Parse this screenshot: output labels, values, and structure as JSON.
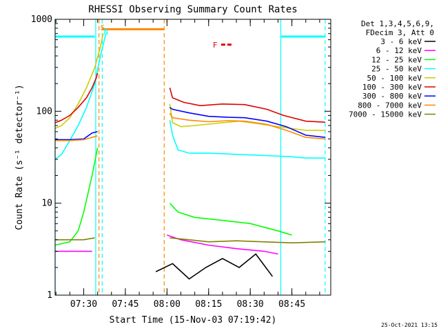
{
  "chart_data": {
    "type": "line",
    "title": "RHESSI Observing Summary Count Rates",
    "xlabel": "Start Time (15-Nov-03 07:19:42)",
    "ylabel": "Count Rate (s⁻¹ detector⁻¹)",
    "yscale": "log",
    "ylim": [
      1,
      1000
    ],
    "y_ticks": [
      1,
      10,
      100,
      1000
    ],
    "y_tick_labels": [
      "1",
      "10",
      "100",
      "1000"
    ],
    "xlim": [
      "07:19:42",
      "08:59:00"
    ],
    "x_ticks": [
      "07:30",
      "07:45",
      "08:00",
      "08:15",
      "08:30",
      "08:45"
    ],
    "grid": false,
    "legend_position": "right",
    "legend_header": [
      "Det 1,3,4,5,6,9,",
      "FDecim 3, Att 0"
    ],
    "footer_date": "25-Oct-2021 13:15",
    "series": [
      {
        "name": "3 - 6 keV",
        "color": "#000000",
        "segments": [
          {
            "x": [
              "07:56:00",
              "08:02:00",
              "08:08:00",
              "08:14:00",
              "08:20:00",
              "08:26:00",
              "08:32:00",
              "08:38:00"
            ],
            "y": [
              1.8,
              2.2,
              1.5,
              2.0,
              2.5,
              2.0,
              2.8,
              1.6
            ]
          }
        ]
      },
      {
        "name": "6 - 12 keV",
        "color": "#ff00ff",
        "segments": [
          {
            "x": [
              "07:19:42",
              "07:25:00",
              "07:30:00",
              "07:33:00"
            ],
            "y": [
              3.0,
              3.0,
              3.0,
              3.0
            ]
          },
          {
            "x": [
              "08:00:00",
              "08:05:00",
              "08:15:00",
              "08:25:00",
              "08:35:00",
              "08:40:00"
            ],
            "y": [
              4.5,
              4.0,
              3.5,
              3.2,
              3.0,
              2.8
            ]
          }
        ]
      },
      {
        "name": "12 - 25 keV",
        "color": "#00ff00",
        "segments": [
          {
            "x": [
              "07:19:42",
              "07:25:00",
              "07:28:00",
              "07:30:00",
              "07:33:00",
              "07:35:00"
            ],
            "y": [
              3.5,
              3.8,
              5.0,
              8.0,
              20,
              40
            ]
          },
          {
            "x": [
              "08:01:00",
              "08:04:00",
              "08:10:00",
              "08:20:00",
              "08:30:00",
              "08:40:00",
              "08:45:00"
            ],
            "y": [
              10,
              8.0,
              7.0,
              6.5,
              6.0,
              5.0,
              4.5
            ]
          }
        ]
      },
      {
        "name": "25 - 50 keV",
        "color": "#00ffff",
        "segments": [
          {
            "x": [
              "07:19:42",
              "07:22:00",
              "07:25:00",
              "07:28:00",
              "07:31:00",
              "07:34:00",
              "07:36:00",
              "07:38:00"
            ],
            "y": [
              30,
              34,
              48,
              70,
              110,
              200,
              400,
              700
            ]
          },
          {
            "x": [
              "08:01:00",
              "08:02:00",
              "08:04:00",
              "08:08:00",
              "08:15:00",
              "08:25:00",
              "08:35:00",
              "08:45:00",
              "08:50:00",
              "08:57:00"
            ],
            "y": [
              80,
              55,
              38,
              35,
              35,
              34,
              33,
              32,
              31,
              31
            ]
          }
        ]
      },
      {
        "name": "50 - 100 keV",
        "color": "#cccc00",
        "segments": [
          {
            "x": [
              "07:19:42",
              "07:22:00",
              "07:25:00",
              "07:28:00",
              "07:31:00",
              "07:34:00",
              "07:36:00",
              "07:37:00"
            ],
            "y": [
              65,
              70,
              85,
              120,
              180,
              300,
              500,
              700
            ]
          },
          {
            "x": [
              "08:01:00",
              "08:02:00",
              "08:05:00",
              "08:10:00",
              "08:20:00",
              "08:26:00",
              "08:32:00",
              "08:40:00",
              "08:50:00",
              "08:57:00"
            ],
            "y": [
              120,
              75,
              68,
              70,
              75,
              78,
              74,
              68,
              62,
              62
            ]
          }
        ]
      },
      {
        "name": "100 - 300 keV",
        "color": "#dd0000",
        "segments": [
          {
            "x": [
              "07:19:42",
              "07:22:00",
              "07:25:00",
              "07:28:00",
              "07:31:00",
              "07:33:00",
              "07:34:30",
              "07:35:00"
            ],
            "y": [
              75,
              80,
              90,
              110,
              140,
              180,
              230,
              260
            ]
          },
          {
            "x": [
              "08:01:00",
              "08:02:00",
              "08:06:00",
              "08:12:00",
              "08:20:00",
              "08:28:00",
              "08:36:00",
              "08:42:00",
              "08:50:00",
              "08:57:00"
            ],
            "y": [
              180,
              140,
              125,
              115,
              120,
              118,
              105,
              90,
              78,
              76
            ]
          }
        ]
      },
      {
        "name": "300 - 800 keV",
        "color": "#0000ff",
        "segments": [
          {
            "x": [
              "07:19:42",
              "07:25:00",
              "07:30:00",
              "07:33:00",
              "07:35:00"
            ],
            "y": [
              49,
              49,
              50,
              58,
              60
            ]
          },
          {
            "x": [
              "08:01:00",
              "08:02:00",
              "08:08:00",
              "08:15:00",
              "08:22:00",
              "08:28:00",
              "08:36:00",
              "08:43:00",
              "08:50:00",
              "08:57:00"
            ],
            "y": [
              110,
              105,
              96,
              88,
              86,
              85,
              78,
              68,
              55,
              52
            ]
          }
        ]
      },
      {
        "name": "800 - 7000 keV",
        "color": "#ff8800",
        "segments": [
          {
            "x": [
              "07:19:42",
              "07:25:00",
              "07:30:00",
              "07:33:00",
              "07:35:00"
            ],
            "y": [
              48,
              48,
              49,
              52,
              54
            ]
          },
          {
            "x": [
              "08:01:00",
              "08:02:00",
              "08:08:00",
              "08:15:00",
              "08:22:00",
              "08:28:00",
              "08:36:00",
              "08:43:00",
              "08:50:00",
              "08:57:00"
            ],
            "y": [
              95,
              85,
              80,
              77,
              79,
              78,
              72,
              62,
              52,
              50
            ]
          }
        ]
      },
      {
        "name": "7000 - 15000 keV",
        "color": "#808000",
        "segments": [
          {
            "x": [
              "07:19:42",
              "07:25:00",
              "07:30:00",
              "07:34:00"
            ],
            "y": [
              4.0,
              4.0,
              4.0,
              4.2
            ]
          },
          {
            "x": [
              "08:01:00",
              "08:08:00",
              "08:15:00",
              "08:25:00",
              "08:35:00",
              "08:45:00",
              "08:57:00"
            ],
            "y": [
              4.2,
              4.0,
              3.8,
              3.9,
              3.8,
              3.7,
              3.8
            ]
          }
        ]
      }
    ],
    "flags": [
      {
        "label": "S",
        "color": "#ff8800",
        "x": "07:35:30"
      },
      {
        "label": "N",
        "color": "#00ffff",
        "x": "07:36:40"
      },
      {
        "label": "F",
        "color": "#dd0000",
        "x": "08:18:00"
      }
    ],
    "bars": [
      {
        "color": "#00ffff",
        "from": "07:19:42",
        "to": "07:34:00",
        "y": 650
      },
      {
        "color": "#ff8800",
        "from": "07:36:30",
        "to": "07:59:00",
        "y": 780
      },
      {
        "color": "#dd0000",
        "from": "08:19:30",
        "to": "08:24:00",
        "y": 530
      },
      {
        "color": "#00ffff",
        "from": "08:41:00",
        "to": "08:57:00",
        "y": 650
      }
    ],
    "vlines": [
      {
        "color": "#00ffff",
        "x": "07:19:42",
        "style": "solid"
      },
      {
        "color": "#00ffff",
        "x": "07:34:20",
        "style": "solid"
      },
      {
        "color": "#ff8800",
        "x": "07:35:30",
        "style": "dashed"
      },
      {
        "color": "#00ffff",
        "x": "07:36:40",
        "style": "dashed"
      },
      {
        "color": "#ff8800",
        "x": "07:59:00",
        "style": "dashed"
      },
      {
        "color": "#00ffff",
        "x": "08:41:00",
        "style": "solid"
      },
      {
        "color": "#00ffff",
        "x": "08:57:00",
        "style": "dashed"
      }
    ]
  }
}
